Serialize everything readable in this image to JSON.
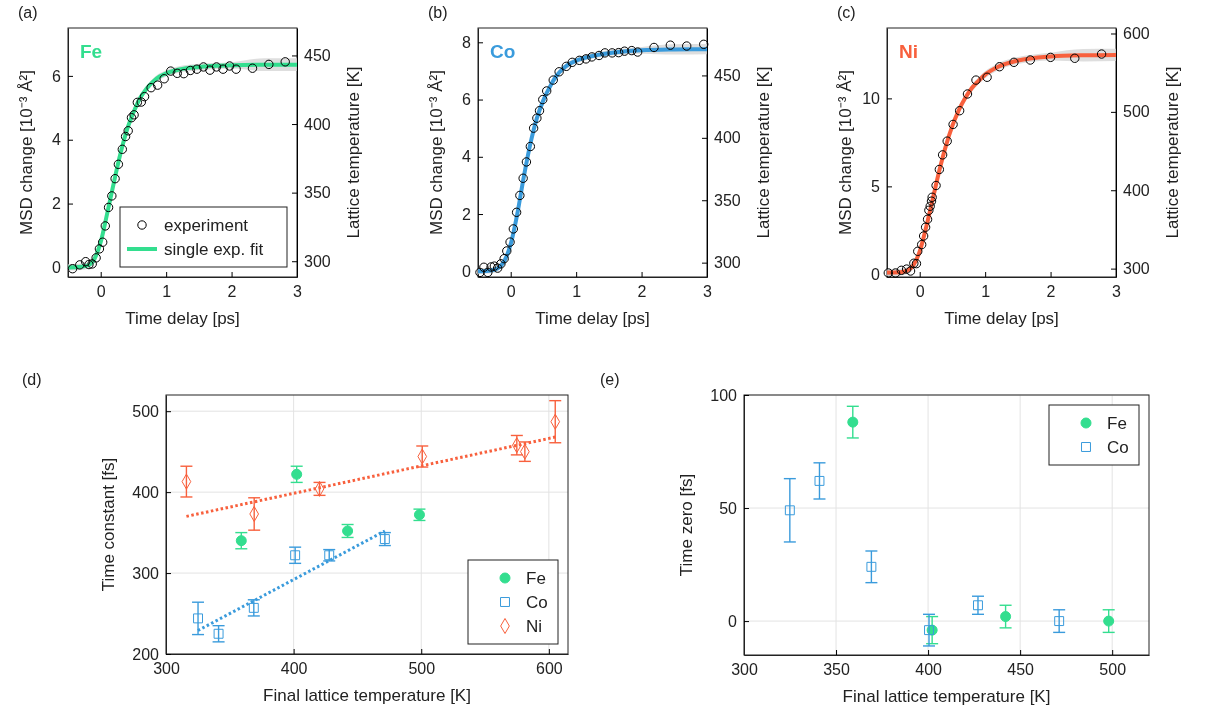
{
  "chart_data": [
    {
      "type": "scatter",
      "title": "(a)",
      "xlabel": "Time delay [ps]",
      "ylabel": "MSD change [10⁻³ Å²]",
      "y2label": "Lattice temperature [K]",
      "annotations": [
        "Fe"
      ],
      "xlim": [
        -0.5,
        3
      ],
      "xticks": [
        0,
        1,
        2,
        3
      ],
      "ylim": [
        -0.3,
        7.5
      ],
      "yticks": [
        0,
        2,
        4,
        6
      ],
      "y2lim": [
        288.5,
        470
      ],
      "y2ticks": [
        300,
        350,
        400,
        450
      ],
      "legend": "bottom right",
      "series": [
        {
          "name": "experiment",
          "marker": "circle",
          "color": "#000000",
          "x": [
            -0.43,
            -0.32,
            -0.23,
            -0.18,
            -0.13,
            -0.07,
            -0.02,
            0.03,
            0.07,
            0.12,
            0.17,
            0.22,
            0.27,
            0.33,
            0.38,
            0.42,
            0.47,
            0.51,
            0.56,
            0.62,
            0.67,
            0.77,
            0.87,
            0.97,
            1.07,
            1.17,
            1.27,
            1.37,
            1.47,
            1.57,
            1.67,
            1.77,
            1.87,
            1.97,
            2.07,
            2.32,
            2.57,
            2.82
          ],
          "values": [
            -0.04,
            0.08,
            0.18,
            0.09,
            0.11,
            0.3,
            0.58,
            0.79,
            1.3,
            1.88,
            2.24,
            2.78,
            3.23,
            3.7,
            4.1,
            4.28,
            4.69,
            4.78,
            5.17,
            5.18,
            5.35,
            5.63,
            5.71,
            5.91,
            6.15,
            6.08,
            6.07,
            6.17,
            6.21,
            6.28,
            6.18,
            6.28,
            6.21,
            6.31,
            6.21,
            6.24,
            6.36,
            6.44
          ]
        },
        {
          "name": "single exp. fit",
          "type": "line",
          "color": "#33de8f",
          "x": [
            -0.5,
            -0.3,
            -0.2,
            -0.1,
            0,
            0.1,
            0.2,
            0.3,
            0.4,
            0.5,
            0.6,
            0.7,
            0.8,
            0.9,
            1.0,
            1.2,
            1.5,
            2,
            2.5,
            3
          ],
          "values": [
            0.0,
            0.02,
            0.06,
            0.25,
            0.8,
            1.7,
            2.65,
            3.55,
            4.3,
            4.85,
            5.3,
            5.6,
            5.82,
            5.98,
            6.08,
            6.2,
            6.28,
            6.33,
            6.35,
            6.35
          ],
          "lower": [
            -0.1,
            -0.08,
            -0.04,
            0.15,
            0.7,
            1.6,
            2.55,
            3.45,
            4.2,
            4.75,
            5.2,
            5.5,
            5.72,
            5.88,
            5.98,
            6.1,
            6.18,
            6.23,
            6.15,
            6.15
          ],
          "upper": [
            0.1,
            0.12,
            0.16,
            0.35,
            0.9,
            1.8,
            2.75,
            3.65,
            4.4,
            4.95,
            5.4,
            5.7,
            5.92,
            6.08,
            6.18,
            6.3,
            6.38,
            6.43,
            6.55,
            6.55
          ]
        }
      ]
    },
    {
      "type": "scatter",
      "title": "(b)",
      "xlabel": "Time delay [ps]",
      "ylabel": "MSD change [10⁻³ Å²]",
      "y2label": "Lattice temperature [K]",
      "annotations": [
        "Co"
      ],
      "xlim": [
        -0.5,
        3
      ],
      "xticks": [
        0,
        1,
        2,
        3
      ],
      "ylim": [
        -0.2,
        8.5
      ],
      "yticks": [
        0,
        2,
        4,
        6,
        8
      ],
      "y2lim": [
        288.5,
        488
      ],
      "y2ticks": [
        300,
        350,
        400,
        450
      ],
      "series": [
        {
          "type": "line",
          "color": "#3a9bdc",
          "x": [
            -0.5,
            -0.3,
            -0.2,
            -0.1,
            0,
            0.1,
            0.2,
            0.3,
            0.4,
            0.5,
            0.6,
            0.7,
            0.8,
            0.9,
            1.0,
            1.2,
            1.5,
            2,
            2.5,
            3
          ],
          "values": [
            0,
            0.03,
            0.1,
            0.35,
            0.95,
            2.0,
            3.3,
            4.45,
            5.35,
            5.98,
            6.45,
            6.83,
            7.08,
            7.25,
            7.36,
            7.5,
            7.62,
            7.72,
            7.75,
            7.76
          ],
          "lower": [
            -0.1,
            -0.07,
            0,
            0.25,
            0.85,
            1.9,
            3.2,
            4.35,
            5.25,
            5.88,
            6.35,
            6.73,
            6.98,
            7.15,
            7.26,
            7.4,
            7.52,
            7.6,
            7.57,
            7.58
          ],
          "upper": [
            0.1,
            0.13,
            0.2,
            0.45,
            1.05,
            2.1,
            3.4,
            4.55,
            5.45,
            6.08,
            6.55,
            6.93,
            7.18,
            7.35,
            7.46,
            7.6,
            7.72,
            7.84,
            7.93,
            7.94
          ]
        },
        {
          "marker": "circle",
          "color": "#000000",
          "x": [
            -0.47,
            -0.41,
            -0.35,
            -0.3,
            -0.25,
            -0.2,
            -0.15,
            -0.1,
            -0.06,
            -0.01,
            0.04,
            0.09,
            0.14,
            0.19,
            0.24,
            0.3,
            0.35,
            0.4,
            0.44,
            0.49,
            0.55,
            0.65,
            0.74,
            0.85,
            0.94,
            1.05,
            1.15,
            1.24,
            1.35,
            1.44,
            1.55,
            1.65,
            1.74,
            1.85,
            1.94,
            2.19,
            2.44,
            2.69,
            2.95
          ],
          "values": [
            -0.04,
            0.14,
            -0.04,
            0.15,
            0.18,
            0.11,
            0.26,
            0.44,
            0.71,
            1.02,
            1.48,
            2.06,
            2.65,
            3.25,
            3.82,
            4.36,
            5.0,
            5.35,
            5.61,
            6.0,
            6.3,
            6.68,
            6.97,
            7.16,
            7.3,
            7.37,
            7.42,
            7.49,
            7.54,
            7.63,
            7.63,
            7.64,
            7.69,
            7.71,
            7.66,
            7.82,
            7.9,
            7.87,
            7.93
          ]
        }
      ]
    },
    {
      "type": "scatter",
      "title": "(c)",
      "xlabel": "Time delay [ps]",
      "ylabel": "MSD change [10⁻³ Å²]",
      "y2label": "Lattice temperature [K]",
      "annotations": [
        "Ni"
      ],
      "xlim": [
        -0.5,
        3
      ],
      "xticks": [
        0,
        1,
        2,
        3
      ],
      "ylim": [
        -0.15,
        14
      ],
      "yticks": [
        0,
        5,
        10
      ],
      "y2lim": [
        289.3,
        607
      ],
      "y2ticks": [
        300,
        400,
        500,
        600
      ],
      "series": [
        {
          "type": "line",
          "color": "#f8603d",
          "x": [
            -0.5,
            -0.3,
            -0.2,
            -0.1,
            0,
            0.1,
            0.2,
            0.3,
            0.4,
            0.5,
            0.6,
            0.7,
            0.8,
            0.9,
            1.0,
            1.2,
            1.5,
            2,
            2.5,
            3
          ],
          "values": [
            0.1,
            0.12,
            0.2,
            0.5,
            1.3,
            2.7,
            4.3,
            5.9,
            7.3,
            8.45,
            9.35,
            10.05,
            10.6,
            11.0,
            11.35,
            11.8,
            12.15,
            12.38,
            12.45,
            12.47
          ],
          "lower": [
            -0.1,
            -0.08,
            0,
            0.3,
            1.1,
            2.5,
            4.1,
            5.7,
            7.1,
            8.25,
            9.15,
            9.85,
            10.4,
            10.8,
            11.15,
            11.6,
            11.95,
            12.15,
            12.1,
            12.12
          ],
          "upper": [
            0.3,
            0.32,
            0.4,
            0.7,
            1.5,
            2.9,
            4.5,
            6.1,
            7.5,
            8.65,
            9.55,
            10.25,
            10.8,
            11.2,
            11.55,
            12.0,
            12.35,
            12.6,
            12.8,
            12.82
          ]
        },
        {
          "marker": "circle",
          "color": "#000000",
          "x": [
            -0.48,
            -0.37,
            -0.28,
            -0.2,
            -0.14,
            -0.09,
            -0.05,
            -0.03,
            0.03,
            0.06,
            0.09,
            0.12,
            0.14,
            0.16,
            0.18,
            0.19,
            0.25,
            0.3,
            0.35,
            0.42,
            0.51,
            0.61,
            0.73,
            0.86,
            1.03,
            1.22,
            1.44,
            1.69,
            2.0,
            2.37,
            2.78
          ],
          "values": [
            0.08,
            0.08,
            0.23,
            0.3,
            0.19,
            0.63,
            0.61,
            1.31,
            1.69,
            2.18,
            2.68,
            3.13,
            3.64,
            3.87,
            4.16,
            4.38,
            5.05,
            5.96,
            6.79,
            7.57,
            8.52,
            9.3,
            10.25,
            11.04,
            11.2,
            11.8,
            12.05,
            12.18,
            12.33,
            12.28,
            12.52
          ]
        }
      ]
    },
    {
      "type": "scatter",
      "title": "(d)",
      "xlabel": "Final lattice temperature [K]",
      "ylabel": "Time constant [fs]",
      "xlim": [
        300,
        615
      ],
      "xticks": [
        300,
        400,
        500,
        600
      ],
      "ylim": [
        200,
        520
      ],
      "yticks": [
        200,
        300,
        400,
        500
      ],
      "grid": true,
      "legend": "bottom right",
      "series": [
        {
          "type": "line",
          "line_style": "dotted",
          "color": "#f8603d",
          "x": [
            316,
            605
          ],
          "values": [
            370,
            468
          ]
        },
        {
          "type": "line",
          "line_style": "dotted",
          "color": "#3a9bdc",
          "x": [
            325,
            471.5
          ],
          "values": [
            229,
            352
          ]
        },
        {
          "name": "Fe",
          "marker": "circle",
          "color": "#33de8f",
          "x": [
            359,
            402.4,
            442.3,
            498.6
          ],
          "values": [
            340,
            422,
            352,
            372
          ],
          "errors": [
            10,
            10,
            8,
            7
          ]
        },
        {
          "name": "Co",
          "marker": "square",
          "color": "#3a9bdc",
          "x": [
            325.1,
            341.2,
            368.8,
            401.2,
            427.9,
            471.5
          ],
          "values": [
            244,
            225,
            257,
            322,
            322,
            342
          ],
          "errors": [
            20,
            10,
            10,
            10,
            7,
            8
          ]
        },
        {
          "name": "Ni",
          "marker": "diamond",
          "color": "#f8603d",
          "x": [
            316,
            369.1,
            420.3,
            500.8,
            574.9,
            581.2,
            605
          ],
          "values": [
            413,
            373,
            404,
            444,
            458,
            450,
            487
          ],
          "errors": [
            19,
            20,
            8,
            13,
            12,
            12,
            26
          ]
        }
      ]
    },
    {
      "type": "scatter",
      "title": "(e)",
      "xlabel": "Final lattice temperature [K]",
      "ylabel": "Time zero [fs]",
      "xlim": [
        300,
        520
      ],
      "xticks": [
        300,
        350,
        400,
        450,
        500
      ],
      "ylim": [
        -15,
        100
      ],
      "yticks": [
        0,
        50,
        100
      ],
      "grid": true,
      "legend": "top right",
      "series": [
        {
          "name": "Fe",
          "marker": "circle",
          "color": "#33de8f",
          "x": [
            359.1,
            402.2,
            442.1,
            498.1
          ],
          "values": [
            88,
            -4,
            2,
            0
          ],
          "errors": [
            7,
            6,
            5,
            5
          ]
        },
        {
          "name": "Co",
          "marker": "square",
          "color": "#3a9bdc",
          "x": [
            324.9,
            341,
            369.2,
            400.5,
            427.1,
            471.2
          ],
          "values": [
            49,
            62,
            24,
            -4,
            7,
            0
          ],
          "errors": [
            14,
            8,
            7,
            7,
            4,
            5
          ]
        }
      ]
    }
  ]
}
